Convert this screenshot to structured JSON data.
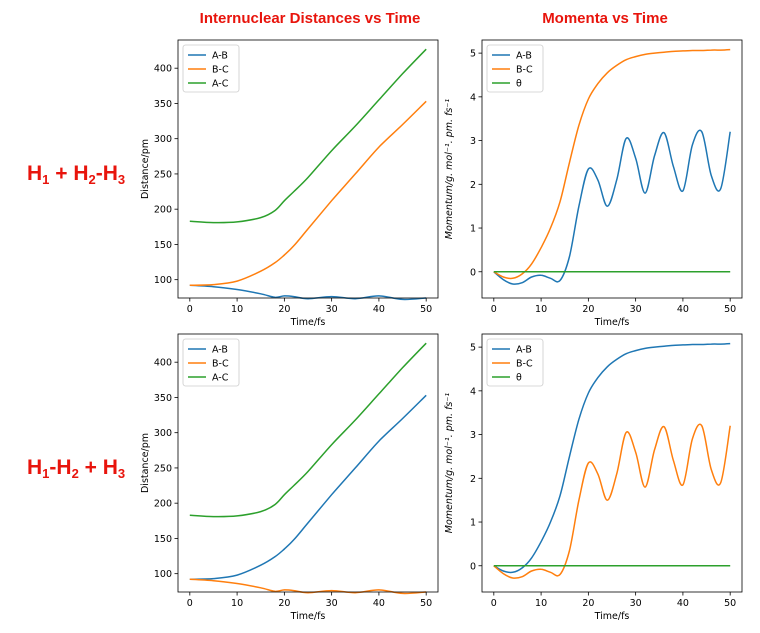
{
  "column_titles": {
    "left": "Internuclear Distances vs Time",
    "right": "Momenta vs Time"
  },
  "row_labels": [
    {
      "parts": [
        [
          "H",
          "1"
        ],
        [
          " + ",
          ""
        ],
        [
          "H",
          "2"
        ],
        [
          "-",
          ""
        ],
        [
          "H",
          "3"
        ]
      ]
    },
    {
      "parts": [
        [
          "H",
          "1"
        ],
        [
          "-",
          ""
        ],
        [
          "H",
          "2"
        ],
        [
          " + ",
          ""
        ],
        [
          "H",
          "3"
        ]
      ]
    }
  ],
  "colors": {
    "blue": "#1f77b4",
    "orange": "#ff7f0e",
    "green": "#2ca02c",
    "title_red": "#e8140c"
  },
  "chart_data": [
    {
      "type": "line",
      "title": "",
      "xlabel": "Time/fs",
      "ylabel": "Distance/pm",
      "xlim": [
        -2.5,
        52.5
      ],
      "ylim": [
        74,
        440
      ],
      "xticks": [
        0,
        10,
        20,
        30,
        40,
        50
      ],
      "yticks": [
        100,
        150,
        200,
        250,
        300,
        350,
        400
      ],
      "legend": "top-left",
      "x": [
        0,
        5,
        10,
        15,
        18,
        20,
        22,
        25,
        30,
        35,
        40,
        45,
        50
      ],
      "series": [
        {
          "name": "A-B",
          "color": "#1f77b4",
          "values": [
            92,
            90,
            86,
            80,
            75,
            77,
            76,
            73,
            76,
            73,
            77,
            72,
            74
          ]
        },
        {
          "name": "B-C",
          "color": "#ff7f0e",
          "values": [
            92,
            93,
            98,
            112,
            124,
            135,
            148,
            172,
            212,
            250,
            288,
            320,
            353
          ]
        },
        {
          "name": "A-C",
          "color": "#2ca02c",
          "values": [
            183,
            181,
            182,
            188,
            198,
            212,
            225,
            245,
            283,
            318,
            355,
            392,
            427
          ]
        }
      ]
    },
    {
      "type": "line",
      "title": "",
      "xlabel": "Time/fs",
      "ylabel": "Momentum/g. mol⁻¹. pm. fs⁻¹",
      "xlim": [
        -2.5,
        52.5
      ],
      "ylim": [
        -0.6,
        5.3
      ],
      "xticks": [
        0,
        10,
        20,
        30,
        40,
        50
      ],
      "yticks": [
        0,
        1,
        2,
        3,
        4,
        5
      ],
      "legend": "top-left",
      "x": [
        0,
        2,
        4,
        6,
        8,
        10,
        12,
        14,
        16,
        18,
        20,
        22,
        24,
        26,
        28,
        30,
        32,
        34,
        36,
        38,
        40,
        42,
        44,
        46,
        48,
        50
      ],
      "series": [
        {
          "name": "A-B",
          "color": "#1f77b4",
          "values": [
            0,
            -0.18,
            -0.28,
            -0.25,
            -0.12,
            -0.08,
            -0.15,
            -0.2,
            0.35,
            1.5,
            2.35,
            2.1,
            1.5,
            2.1,
            3.05,
            2.6,
            1.8,
            2.65,
            3.18,
            2.4,
            1.85,
            2.9,
            3.2,
            2.2,
            1.9,
            3.2
          ]
        },
        {
          "name": "B-C",
          "color": "#ff7f0e",
          "values": [
            0,
            -0.12,
            -0.15,
            -0.05,
            0.18,
            0.55,
            1.0,
            1.6,
            2.5,
            3.35,
            3.95,
            4.3,
            4.55,
            4.72,
            4.85,
            4.92,
            4.97,
            5.0,
            5.02,
            5.04,
            5.05,
            5.06,
            5.06,
            5.07,
            5.07,
            5.08
          ]
        },
        {
          "name": "θ",
          "color": "#2ca02c",
          "values": [
            0,
            0,
            0,
            0,
            0,
            0,
            0,
            0,
            0,
            0,
            0,
            0,
            0,
            0,
            0,
            0,
            0,
            0,
            0,
            0,
            0,
            0,
            0,
            0,
            0,
            0
          ]
        }
      ]
    },
    {
      "type": "line",
      "title": "",
      "xlabel": "Time/fs",
      "ylabel": "Distance/pm",
      "xlim": [
        -2.5,
        52.5
      ],
      "ylim": [
        74,
        440
      ],
      "xticks": [
        0,
        10,
        20,
        30,
        40,
        50
      ],
      "yticks": [
        100,
        150,
        200,
        250,
        300,
        350,
        400
      ],
      "legend": "top-left",
      "x": [
        0,
        5,
        10,
        15,
        18,
        20,
        22,
        25,
        30,
        35,
        40,
        45,
        50
      ],
      "series": [
        {
          "name": "A-B",
          "color": "#1f77b4",
          "values": [
            92,
            93,
            98,
            112,
            124,
            135,
            148,
            172,
            212,
            250,
            288,
            320,
            353
          ]
        },
        {
          "name": "B-C",
          "color": "#ff7f0e",
          "values": [
            92,
            90,
            86,
            80,
            75,
            77,
            76,
            73,
            76,
            73,
            77,
            72,
            74
          ]
        },
        {
          "name": "A-C",
          "color": "#2ca02c",
          "values": [
            183,
            181,
            182,
            188,
            198,
            212,
            225,
            245,
            283,
            318,
            355,
            392,
            427
          ]
        }
      ]
    },
    {
      "type": "line",
      "title": "",
      "xlabel": "Time/fs",
      "ylabel": "Momentum/g. mol⁻¹. pm. fs⁻¹",
      "xlim": [
        -2.5,
        52.5
      ],
      "ylim": [
        -0.6,
        5.3
      ],
      "xticks": [
        0,
        10,
        20,
        30,
        40,
        50
      ],
      "yticks": [
        0,
        1,
        2,
        3,
        4,
        5
      ],
      "legend": "top-left",
      "x": [
        0,
        2,
        4,
        6,
        8,
        10,
        12,
        14,
        16,
        18,
        20,
        22,
        24,
        26,
        28,
        30,
        32,
        34,
        36,
        38,
        40,
        42,
        44,
        46,
        48,
        50
      ],
      "series": [
        {
          "name": "A-B",
          "color": "#1f77b4",
          "values": [
            0,
            -0.12,
            -0.15,
            -0.05,
            0.18,
            0.55,
            1.0,
            1.6,
            2.5,
            3.35,
            3.95,
            4.3,
            4.55,
            4.72,
            4.85,
            4.92,
            4.97,
            5.0,
            5.02,
            5.04,
            5.05,
            5.06,
            5.06,
            5.07,
            5.07,
            5.08
          ]
        },
        {
          "name": "B-C",
          "color": "#ff7f0e",
          "values": [
            0,
            -0.18,
            -0.28,
            -0.25,
            -0.12,
            -0.08,
            -0.15,
            -0.2,
            0.35,
            1.5,
            2.35,
            2.1,
            1.5,
            2.1,
            3.05,
            2.6,
            1.8,
            2.65,
            3.18,
            2.4,
            1.85,
            2.9,
            3.2,
            2.2,
            1.9,
            3.2
          ]
        },
        {
          "name": "θ",
          "color": "#2ca02c",
          "values": [
            0,
            0,
            0,
            0,
            0,
            0,
            0,
            0,
            0,
            0,
            0,
            0,
            0,
            0,
            0,
            0,
            0,
            0,
            0,
            0,
            0,
            0,
            0,
            0,
            0,
            0
          ]
        }
      ]
    }
  ]
}
